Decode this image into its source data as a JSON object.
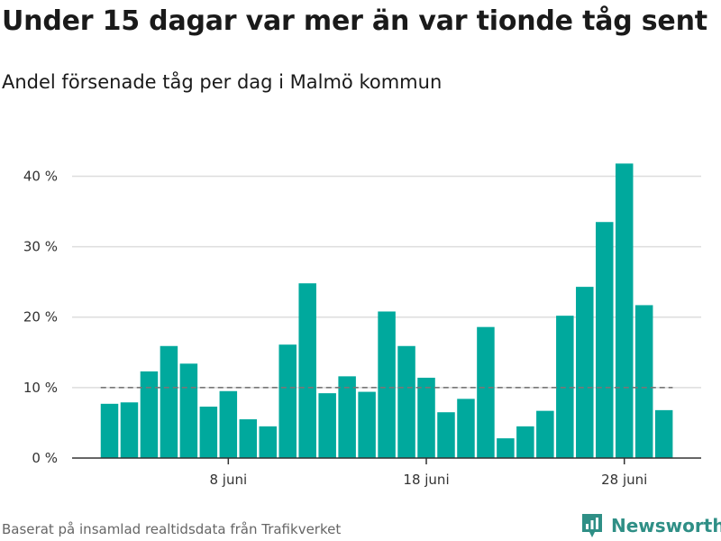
{
  "title": "Under 15 dagar var mer än var tionde tåg sent",
  "subtitle": "Andel försenade tåg per dag i Malmö kommun",
  "caption": "Baserat på insamlad realtidsdata från Trafikverket",
  "brand": {
    "name": "Newsworthy",
    "icon": "newsworthy-logo-icon"
  },
  "colors": {
    "bar": "#00a99d",
    "reference_line": "#777777",
    "grid": "#dddddd",
    "axis": "#333333",
    "brand": "#2f8f86"
  },
  "chart_data": {
    "type": "bar",
    "x": [
      "2018-06-02",
      "2018-06-03",
      "2018-06-04",
      "2018-06-05",
      "2018-06-06",
      "2018-06-07",
      "2018-06-08",
      "2018-06-09",
      "2018-06-10",
      "2018-06-11",
      "2018-06-12",
      "2018-06-13",
      "2018-06-14",
      "2018-06-15",
      "2018-06-16",
      "2018-06-17",
      "2018-06-18",
      "2018-06-19",
      "2018-06-20",
      "2018-06-21",
      "2018-06-22",
      "2018-06-23",
      "2018-06-24",
      "2018-06-25",
      "2018-06-26",
      "2018-06-27",
      "2018-06-28",
      "2018-06-29",
      "2018-06-30"
    ],
    "values": [
      7.7,
      7.9,
      12.3,
      15.9,
      13.4,
      7.3,
      9.5,
      5.5,
      4.5,
      16.1,
      24.8,
      9.2,
      11.6,
      9.4,
      20.8,
      15.9,
      11.4,
      6.5,
      8.4,
      18.6,
      2.8,
      4.5,
      6.7,
      20.2,
      24.3,
      33.5,
      41.8,
      21.7,
      6.8
    ],
    "reference_line": 10,
    "ylim": [
      0,
      43
    ],
    "yticks": [
      0,
      10,
      20,
      30,
      40
    ],
    "ytick_labels": [
      "0 %",
      "10 %",
      "20 %",
      "30 %",
      "40 %"
    ],
    "xticks": [
      {
        "date": "2018-06-08",
        "label": "8 juni"
      },
      {
        "date": "2018-06-18",
        "label": "18 juni"
      },
      {
        "date": "2018-06-28",
        "label": "28 juni"
      }
    ],
    "grid": true,
    "xlabel": "",
    "ylabel": ""
  }
}
